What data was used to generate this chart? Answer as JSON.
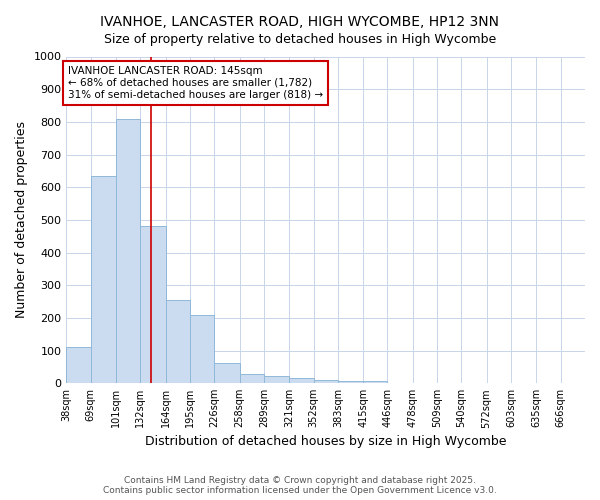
{
  "title": "IVANHOE, LANCASTER ROAD, HIGH WYCOMBE, HP12 3NN",
  "subtitle": "Size of property relative to detached houses in High Wycombe",
  "xlabel": "Distribution of detached houses by size in High Wycombe",
  "ylabel": "Number of detached properties",
  "bar_color": "#ccdcf0",
  "bar_edge_color": "#90b8d8",
  "bar_heights": [
    110,
    635,
    810,
    480,
    255,
    210,
    63,
    28,
    22,
    15,
    10,
    8,
    8,
    0,
    0,
    0,
    0,
    0,
    0,
    0,
    0
  ],
  "bin_labels": [
    "38sqm",
    "69sqm",
    "101sqm",
    "132sqm",
    "164sqm",
    "195sqm",
    "226sqm",
    "258sqm",
    "289sqm",
    "321sqm",
    "352sqm",
    "383sqm",
    "415sqm",
    "446sqm",
    "478sqm",
    "509sqm",
    "540sqm",
    "572sqm",
    "603sqm",
    "635sqm",
    "666sqm"
  ],
  "bin_edges": [
    38,
    69,
    101,
    132,
    164,
    195,
    226,
    258,
    289,
    321,
    352,
    383,
    415,
    446,
    478,
    509,
    540,
    572,
    603,
    635,
    666
  ],
  "red_line_x": 145,
  "ylim": [
    0,
    1000
  ],
  "yticks": [
    0,
    100,
    200,
    300,
    400,
    500,
    600,
    700,
    800,
    900,
    1000
  ],
  "annotation_title": "IVANHOE LANCASTER ROAD: 145sqm",
  "annotation_line1": "← 68% of detached houses are smaller (1,782)",
  "annotation_line2": "31% of semi-detached houses are larger (818) →",
  "annotation_box_color": "#ffffff",
  "annotation_box_edge": "#cc0000",
  "footer_line1": "Contains HM Land Registry data © Crown copyright and database right 2025.",
  "footer_line2": "Contains public sector information licensed under the Open Government Licence v3.0.",
  "background_color": "#ffffff",
  "grid_color": "#c8d4e8",
  "fig_width": 6.0,
  "fig_height": 5.0,
  "dpi": 100
}
